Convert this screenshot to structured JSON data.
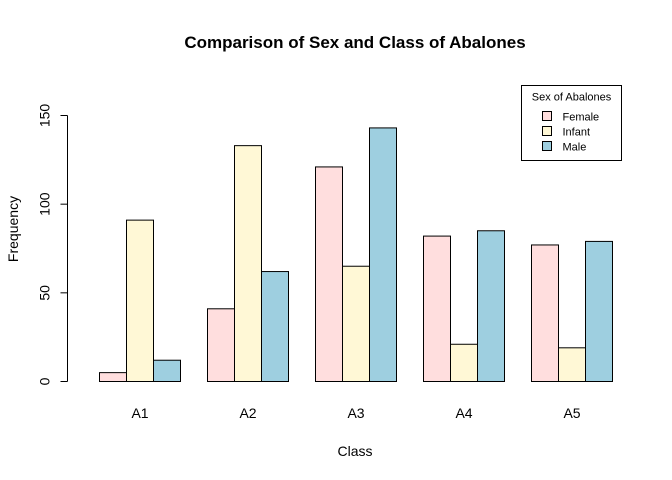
{
  "chart_data": {
    "type": "bar",
    "title": "Comparison of Sex and Class of Abalones",
    "xlabel": "Class",
    "ylabel": "Frequency",
    "categories": [
      "A1",
      "A2",
      "A3",
      "A4",
      "A5"
    ],
    "ylim": [
      0,
      150
    ],
    "yticks": [
      0,
      50,
      100,
      150
    ],
    "grid": false,
    "legend": {
      "title": "Sex of Abalones",
      "position": "top-right"
    },
    "series": [
      {
        "name": "Female",
        "color": "#FFDEDE",
        "values": [
          5,
          41,
          121,
          82,
          77
        ]
      },
      {
        "name": "Infant",
        "color": "#FFF8D6",
        "values": [
          91,
          133,
          65,
          21,
          19
        ]
      },
      {
        "name": "Male",
        "color": "#9ECFE0",
        "values": [
          12,
          62,
          143,
          85,
          79
        ]
      }
    ]
  }
}
